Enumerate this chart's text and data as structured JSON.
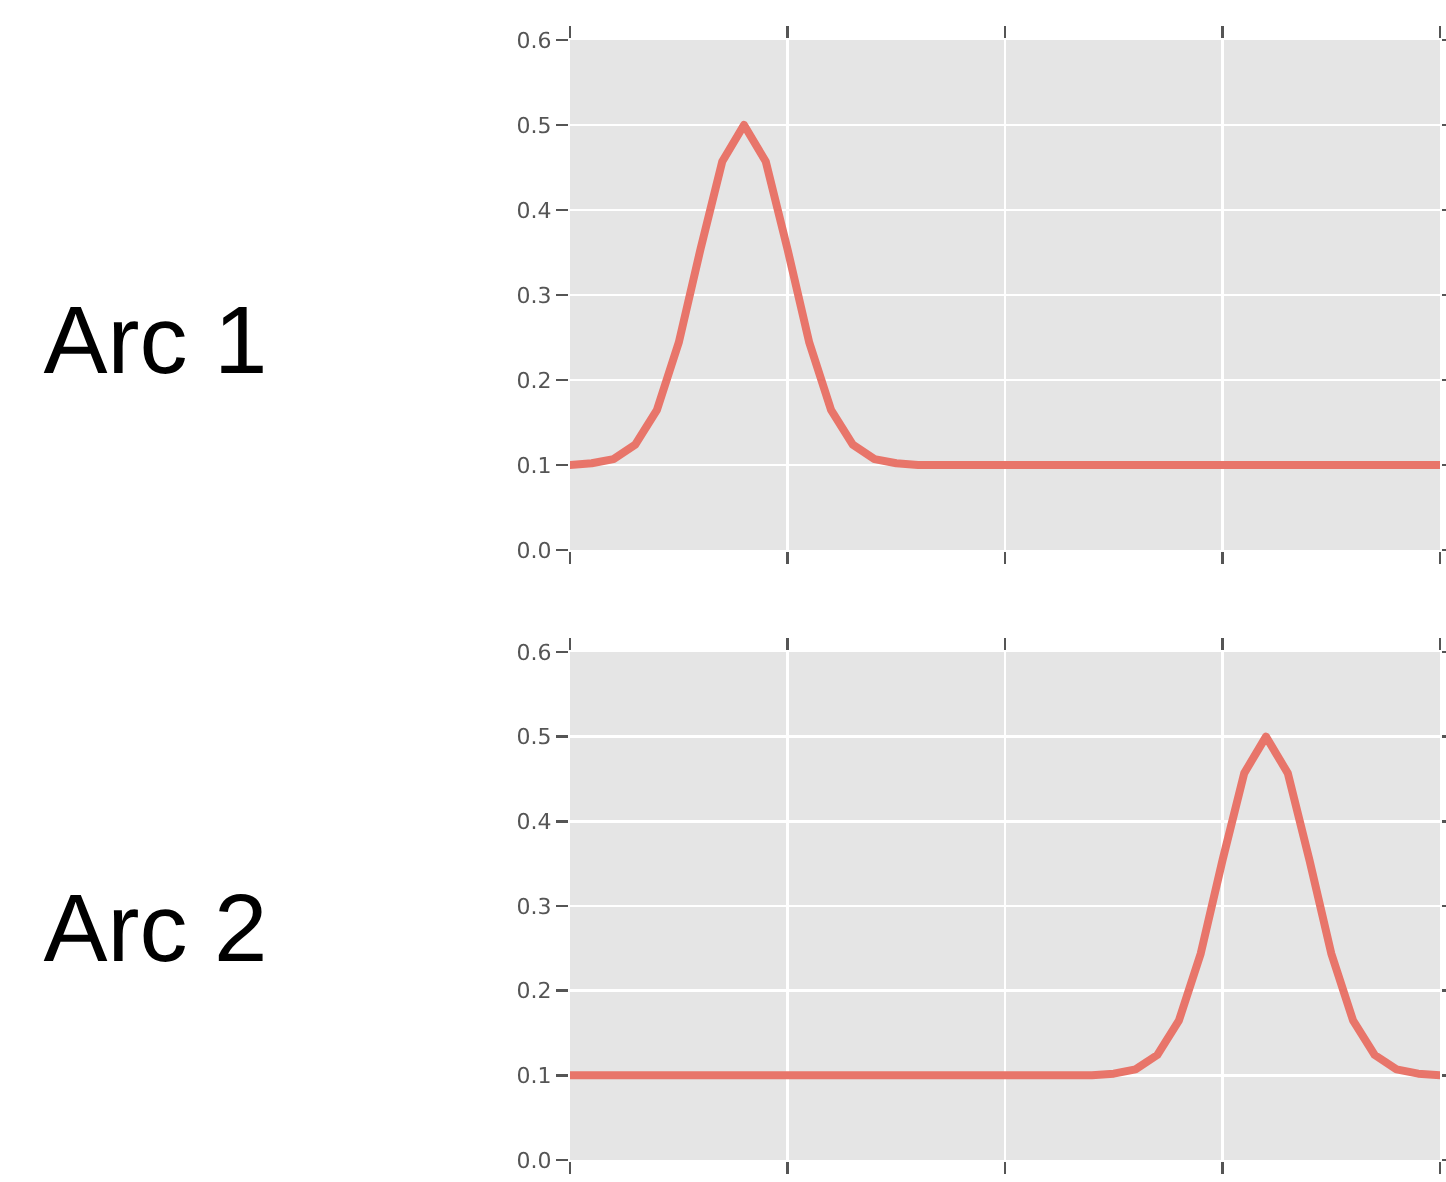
{
  "chart_data": [
    {
      "type": "line",
      "title": "Arc 1",
      "categories": [
        null,
        null,
        null,
        null,
        null,
        null,
        null,
        null,
        null,
        null,
        null,
        null,
        null,
        null,
        null,
        null,
        null,
        null,
        null,
        null,
        null,
        null,
        null,
        null,
        null,
        null,
        null,
        null,
        null,
        null,
        null,
        null,
        null,
        null,
        null,
        null,
        null,
        null,
        null,
        null,
        null
      ],
      "ylim": [
        0,
        0.6
      ],
      "yticks": [
        {
          "value": 0,
          "label": "0.0"
        },
        0.1,
        0.2,
        0.3,
        0.4,
        0.5,
        0.6
      ],
      "grid": true,
      "tick_labels": "y",
      "series": [
        {
          "color": "#e8756a",
          "values": [
            0.1,
            0.102,
            0.107,
            0.124,
            0.165,
            0.244,
            0.354,
            0.457,
            0.5,
            0.457,
            0.354,
            0.244,
            0.165,
            0.124,
            0.107,
            0.102,
            0.1,
            0.1,
            0.1,
            0.1,
            0.1,
            0.1,
            0.1,
            0.1,
            0.1,
            0.1,
            0.1,
            0.1,
            0.1,
            0.1,
            0.1,
            0.1,
            0.1,
            0.1,
            0.1,
            0.1,
            0.1,
            0.1,
            0.1,
            0.1,
            0.1
          ]
        }
      ]
    },
    {
      "type": "line",
      "title": "Arc 2",
      "categories": [
        null,
        null,
        null,
        null,
        null,
        null,
        null,
        null,
        null,
        null,
        null,
        null,
        null,
        null,
        null,
        null,
        null,
        null,
        null,
        null,
        null,
        null,
        null,
        null,
        null,
        null,
        null,
        null,
        null,
        null,
        null,
        null,
        null,
        null,
        null,
        null,
        null,
        null,
        null,
        null,
        null
      ],
      "ylim": [
        0,
        0.6
      ],
      "yticks": [
        {
          "value": 0,
          "label": "0.0"
        },
        0.1,
        0.2,
        0.3,
        0.4,
        0.5,
        0.6
      ],
      "grid": true,
      "tick_labels": "y",
      "series": [
        {
          "color": "#e8756a",
          "values": [
            0.1,
            0.1,
            0.1,
            0.1,
            0.1,
            0.1,
            0.1,
            0.1,
            0.1,
            0.1,
            0.1,
            0.1,
            0.1,
            0.1,
            0.1,
            0.1,
            0.1,
            0.1,
            0.1,
            0.1,
            0.1,
            0.1,
            0.1,
            0.1,
            0.1,
            0.102,
            0.107,
            0.124,
            0.165,
            0.244,
            0.354,
            0.457,
            0.5,
            0.457,
            0.354,
            0.244,
            0.165,
            0.124,
            0.107,
            0.102,
            0.1
          ]
        }
      ]
    }
  ]
}
